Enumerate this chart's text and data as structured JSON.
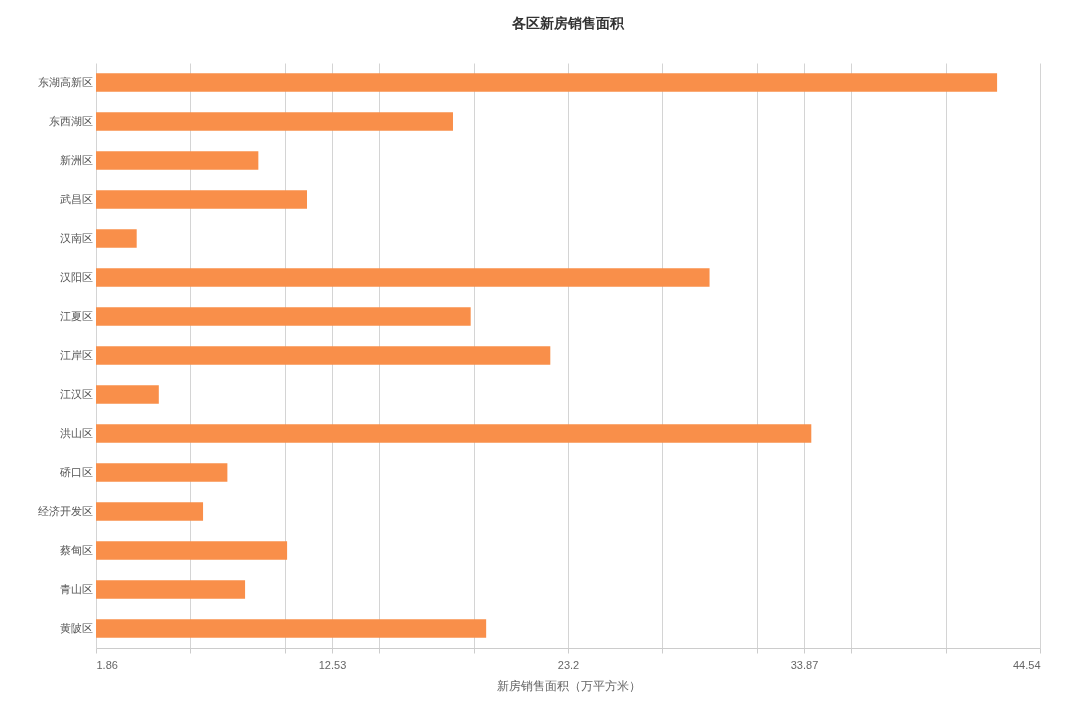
{
  "chart_data": {
    "type": "bar",
    "orientation": "horizontal",
    "title": "各区新房销售面积",
    "xlabel": "新房销售面积（万平方米）",
    "categories": [
      "东湖高新区",
      "东西湖区",
      "新洲区",
      "武昌区",
      "汉南区",
      "汉阳区",
      "江夏区",
      "江岸区",
      "江汉区",
      "洪山区",
      "硚口区",
      "经济开发区",
      "蔡甸区",
      "青山区",
      "黄陂区"
    ],
    "values": [
      42.6,
      18.0,
      9.2,
      11.4,
      3.7,
      29.6,
      18.8,
      22.4,
      4.7,
      34.2,
      7.8,
      6.7,
      10.5,
      8.6,
      19.5
    ],
    "color": "#f98f4a",
    "xlim": [
      1.86,
      44.54
    ],
    "xticks": [
      1.86,
      {
        "value": 6.128,
        "label": null
      },
      {
        "value": 10.396,
        "label": null
      },
      12.53,
      {
        "value": 14.664,
        "label": null
      },
      {
        "value": 18.932,
        "label": null
      },
      23.2,
      {
        "value": 27.468,
        "label": null
      },
      {
        "value": 31.736,
        "label": null
      },
      33.87,
      {
        "value": 36.004,
        "label": null
      },
      {
        "value": 40.272,
        "label": null
      },
      44.54
    ],
    "grid": "x"
  }
}
